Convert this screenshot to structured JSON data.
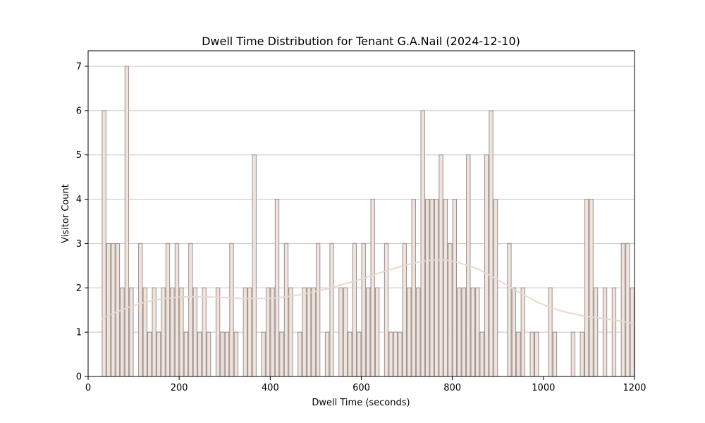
{
  "chart_data": {
    "type": "bar",
    "title": "Dwell Time Distribution for Tenant G.A.Nail (2024-12-10)",
    "xlabel": "Dwell Time (seconds)",
    "ylabel": "Visitor Count",
    "xlim": [
      0,
      1200
    ],
    "ylim": [
      0,
      7.35
    ],
    "xticks": [
      0,
      200,
      400,
      600,
      800,
      1000,
      1200
    ],
    "yticks": [
      0,
      1,
      2,
      3,
      4,
      5,
      6,
      7
    ],
    "grid": "y",
    "bin_width": 10,
    "bins": [
      {
        "x": 35,
        "count": 6
      },
      {
        "x": 45,
        "count": 3
      },
      {
        "x": 55,
        "count": 3
      },
      {
        "x": 65,
        "count": 3
      },
      {
        "x": 75,
        "count": 2
      },
      {
        "x": 85,
        "count": 7
      },
      {
        "x": 95,
        "count": 2
      },
      {
        "x": 115,
        "count": 3
      },
      {
        "x": 125,
        "count": 2
      },
      {
        "x": 135,
        "count": 1
      },
      {
        "x": 145,
        "count": 2
      },
      {
        "x": 155,
        "count": 1
      },
      {
        "x": 165,
        "count": 2
      },
      {
        "x": 175,
        "count": 3
      },
      {
        "x": 185,
        "count": 2
      },
      {
        "x": 195,
        "count": 3
      },
      {
        "x": 205,
        "count": 2
      },
      {
        "x": 215,
        "count": 1
      },
      {
        "x": 225,
        "count": 3
      },
      {
        "x": 235,
        "count": 2
      },
      {
        "x": 245,
        "count": 1
      },
      {
        "x": 255,
        "count": 2
      },
      {
        "x": 265,
        "count": 1
      },
      {
        "x": 285,
        "count": 2
      },
      {
        "x": 295,
        "count": 1
      },
      {
        "x": 305,
        "count": 1
      },
      {
        "x": 315,
        "count": 3
      },
      {
        "x": 325,
        "count": 1
      },
      {
        "x": 345,
        "count": 2
      },
      {
        "x": 355,
        "count": 2
      },
      {
        "x": 365,
        "count": 5
      },
      {
        "x": 385,
        "count": 1
      },
      {
        "x": 395,
        "count": 2
      },
      {
        "x": 405,
        "count": 2
      },
      {
        "x": 415,
        "count": 4
      },
      {
        "x": 425,
        "count": 1
      },
      {
        "x": 435,
        "count": 3
      },
      {
        "x": 445,
        "count": 2
      },
      {
        "x": 465,
        "count": 1
      },
      {
        "x": 475,
        "count": 2
      },
      {
        "x": 485,
        "count": 2
      },
      {
        "x": 495,
        "count": 2
      },
      {
        "x": 505,
        "count": 3
      },
      {
        "x": 525,
        "count": 1
      },
      {
        "x": 535,
        "count": 3
      },
      {
        "x": 555,
        "count": 2
      },
      {
        "x": 565,
        "count": 2
      },
      {
        "x": 575,
        "count": 1
      },
      {
        "x": 585,
        "count": 3
      },
      {
        "x": 595,
        "count": 1
      },
      {
        "x": 605,
        "count": 3
      },
      {
        "x": 615,
        "count": 2
      },
      {
        "x": 625,
        "count": 4
      },
      {
        "x": 635,
        "count": 2
      },
      {
        "x": 655,
        "count": 3
      },
      {
        "x": 665,
        "count": 1
      },
      {
        "x": 675,
        "count": 1
      },
      {
        "x": 685,
        "count": 1
      },
      {
        "x": 695,
        "count": 3
      },
      {
        "x": 705,
        "count": 2
      },
      {
        "x": 715,
        "count": 4
      },
      {
        "x": 725,
        "count": 2
      },
      {
        "x": 735,
        "count": 6
      },
      {
        "x": 745,
        "count": 4
      },
      {
        "x": 755,
        "count": 4
      },
      {
        "x": 765,
        "count": 4
      },
      {
        "x": 775,
        "count": 5
      },
      {
        "x": 785,
        "count": 4
      },
      {
        "x": 795,
        "count": 3
      },
      {
        "x": 805,
        "count": 4
      },
      {
        "x": 815,
        "count": 2
      },
      {
        "x": 825,
        "count": 2
      },
      {
        "x": 835,
        "count": 5
      },
      {
        "x": 845,
        "count": 2
      },
      {
        "x": 855,
        "count": 2
      },
      {
        "x": 865,
        "count": 1
      },
      {
        "x": 875,
        "count": 5
      },
      {
        "x": 885,
        "count": 6
      },
      {
        "x": 895,
        "count": 4
      },
      {
        "x": 925,
        "count": 3
      },
      {
        "x": 935,
        "count": 2
      },
      {
        "x": 945,
        "count": 1
      },
      {
        "x": 955,
        "count": 2
      },
      {
        "x": 975,
        "count": 1
      },
      {
        "x": 985,
        "count": 1
      },
      {
        "x": 1015,
        "count": 2
      },
      {
        "x": 1025,
        "count": 1
      },
      {
        "x": 1065,
        "count": 1
      },
      {
        "x": 1085,
        "count": 1
      },
      {
        "x": 1095,
        "count": 4
      },
      {
        "x": 1105,
        "count": 4
      },
      {
        "x": 1115,
        "count": 2
      },
      {
        "x": 1135,
        "count": 2
      },
      {
        "x": 1155,
        "count": 2
      },
      {
        "x": 1175,
        "count": 3
      },
      {
        "x": 1185,
        "count": 3
      },
      {
        "x": 1195,
        "count": 2
      }
    ],
    "kde_curve": {
      "x": [
        30,
        50,
        100,
        150,
        200,
        250,
        300,
        350,
        400,
        450,
        500,
        550,
        600,
        650,
        700,
        750,
        780,
        800,
        850,
        900,
        950,
        1000,
        1050,
        1100,
        1150,
        1200
      ],
      "y": [
        1.3,
        1.4,
        1.6,
        1.73,
        1.79,
        1.8,
        1.78,
        1.76,
        1.77,
        1.82,
        1.92,
        2.05,
        2.2,
        2.37,
        2.52,
        2.62,
        2.63,
        2.6,
        2.45,
        2.18,
        1.88,
        1.62,
        1.45,
        1.35,
        1.28,
        1.2
      ]
    },
    "colors": {
      "bar_fill": "#f0e4de",
      "bar_edge": "#9a8f8b",
      "kde_line": "#ead8cc",
      "grid": "#c4c4c4"
    }
  }
}
